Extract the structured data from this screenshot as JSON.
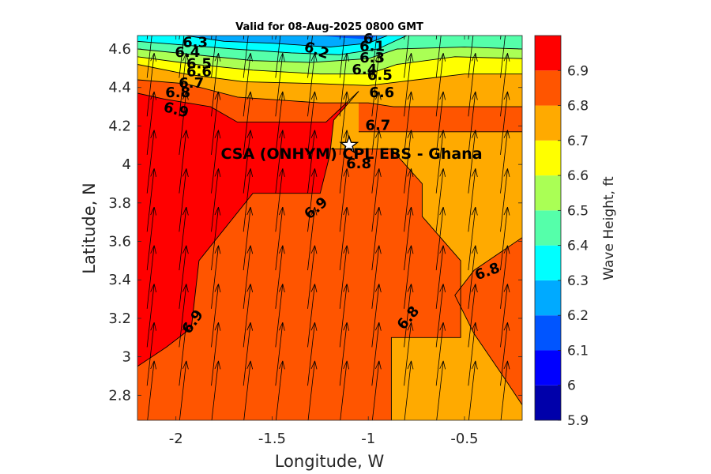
{
  "chart_data": {
    "type": "heatmap",
    "title": "Valid for 08-Aug-2025 0800 GMT",
    "xlabel": "Longitude, W",
    "ylabel": "Latitude, N",
    "xlim": [
      -2.2,
      -0.2
    ],
    "ylim": [
      2.67,
      4.67
    ],
    "x_ticks": [
      -2,
      -1.5,
      -1,
      -0.5
    ],
    "x_tick_labels": [
      "-2",
      "-1.5",
      "-1",
      "-0.5"
    ],
    "y_ticks": [
      2.8,
      3,
      3.2,
      3.4,
      3.6,
      3.8,
      4,
      4.2,
      4.4,
      4.6
    ],
    "y_tick_labels": [
      "2.8",
      "3",
      "3.2",
      "3.4",
      "3.6",
      "3.8",
      "4",
      "4.2",
      "4.4",
      "4.6"
    ],
    "colorbar": {
      "label": "Wave Height, ft",
      "ticks": [
        5.9,
        6,
        6.1,
        6.2,
        6.3,
        6.4,
        6.5,
        6.6,
        6.7,
        6.8,
        6.9
      ],
      "tick_labels": [
        "5.9",
        "6",
        "6.1",
        "6.2",
        "6.3",
        "6.4",
        "6.5",
        "6.6",
        "6.7",
        "6.8",
        "6.9"
      ],
      "range": [
        5.9,
        7.0
      ],
      "bands": [
        {
          "lo": 5.9,
          "hi": 6.0,
          "color": "#0000aa"
        },
        {
          "lo": 6.0,
          "hi": 6.1,
          "color": "#0000ff"
        },
        {
          "lo": 6.1,
          "hi": 6.2,
          "color": "#0055ff"
        },
        {
          "lo": 6.2,
          "hi": 6.3,
          "color": "#00aaff"
        },
        {
          "lo": 6.3,
          "hi": 6.4,
          "color": "#00ffff"
        },
        {
          "lo": 6.4,
          "hi": 6.5,
          "color": "#55ffaa"
        },
        {
          "lo": 6.5,
          "hi": 6.6,
          "color": "#aaff55"
        },
        {
          "lo": 6.6,
          "hi": 6.7,
          "color": "#ffff00"
        },
        {
          "lo": 6.7,
          "hi": 6.8,
          "color": "#ffaa00"
        },
        {
          "lo": 6.8,
          "hi": 6.9,
          "color": "#ff5500"
        },
        {
          "lo": 6.9,
          "hi": 7.0,
          "color": "#ff0000"
        }
      ]
    },
    "regions": [
      {
        "level": 6.8,
        "points": [
          [
            -2.2,
            2.67
          ],
          [
            -0.2,
            2.67
          ],
          [
            -0.2,
            4.67
          ],
          [
            -2.2,
            4.67
          ]
        ]
      },
      {
        "level": 6.7,
        "points": [
          [
            -0.88,
            2.67
          ],
          [
            -0.2,
            2.67
          ],
          [
            -0.2,
            4.67
          ],
          [
            -1.2,
            4.67
          ],
          [
            -1.2,
            4.08
          ],
          [
            -0.88,
            4.08
          ],
          [
            -0.72,
            3.9
          ],
          [
            -0.72,
            3.73
          ],
          [
            -0.52,
            3.5
          ],
          [
            -0.52,
            3.1
          ],
          [
            -0.88,
            3.1
          ]
        ]
      },
      {
        "level": 6.8,
        "points": [
          [
            -0.2,
            2.75
          ],
          [
            -0.2,
            3.62
          ],
          [
            -0.45,
            3.45
          ],
          [
            -0.55,
            3.32
          ],
          [
            -0.45,
            3.12
          ],
          [
            -0.3,
            2.9
          ]
        ]
      },
      {
        "level": 6.9,
        "points": [
          [
            -2.2,
            2.95
          ],
          [
            -2.05,
            3.05
          ],
          [
            -1.92,
            3.15
          ],
          [
            -1.88,
            3.5
          ],
          [
            -1.6,
            3.85
          ],
          [
            -1.25,
            3.85
          ],
          [
            -1.2,
            4.05
          ],
          [
            -1.18,
            4.23
          ],
          [
            -1.05,
            4.38
          ],
          [
            -2.2,
            4.42
          ]
        ]
      },
      {
        "level": 6.8,
        "points": [
          [
            -1.05,
            4.17
          ],
          [
            -0.2,
            4.17
          ],
          [
            -0.2,
            4.67
          ],
          [
            -1.05,
            4.67
          ]
        ]
      },
      {
        "level": 6.8,
        "points": [
          [
            -2.2,
            4.37
          ],
          [
            -2.06,
            4.34
          ],
          [
            -1.82,
            4.3
          ],
          [
            -1.68,
            4.22
          ],
          [
            -1.22,
            4.22
          ],
          [
            -1.05,
            4.38
          ],
          [
            -1.05,
            4.67
          ],
          [
            -2.2,
            4.67
          ]
        ]
      },
      {
        "level": 6.7,
        "points": [
          [
            -2.2,
            4.44
          ],
          [
            -1.95,
            4.42
          ],
          [
            -1.68,
            4.35
          ],
          [
            -1.25,
            4.32
          ],
          [
            -1.0,
            4.32
          ],
          [
            -0.87,
            4.3
          ],
          [
            -0.2,
            4.3
          ],
          [
            -0.2,
            4.67
          ],
          [
            -2.2,
            4.67
          ]
        ]
      },
      {
        "level": 6.6,
        "points": [
          [
            -2.2,
            4.52
          ],
          [
            -1.95,
            4.47
          ],
          [
            -1.65,
            4.43
          ],
          [
            -1.25,
            4.42
          ],
          [
            -1.0,
            4.41
          ],
          [
            -0.75,
            4.44
          ],
          [
            -0.5,
            4.47
          ],
          [
            -0.2,
            4.47
          ],
          [
            -0.2,
            4.67
          ],
          [
            -2.2,
            4.67
          ]
        ]
      },
      {
        "level": 6.5,
        "points": [
          [
            -2.2,
            4.56
          ],
          [
            -1.9,
            4.52
          ],
          [
            -1.6,
            4.49
          ],
          [
            -1.25,
            4.47
          ],
          [
            -1.0,
            4.47
          ],
          [
            -0.85,
            4.52
          ],
          [
            -0.55,
            4.56
          ],
          [
            -0.2,
            4.55
          ],
          [
            -0.2,
            4.67
          ],
          [
            -2.2,
            4.67
          ]
        ]
      },
      {
        "level": 6.4,
        "points": [
          [
            -2.2,
            4.6
          ],
          [
            -1.9,
            4.57
          ],
          [
            -1.6,
            4.54
          ],
          [
            -1.3,
            4.53
          ],
          [
            -1.0,
            4.55
          ],
          [
            -0.85,
            4.6
          ],
          [
            -0.5,
            4.61
          ],
          [
            -0.2,
            4.6
          ],
          [
            -0.2,
            4.67
          ],
          [
            -2.2,
            4.67
          ]
        ]
      },
      {
        "level": 6.3,
        "points": [
          [
            -2.2,
            4.64
          ],
          [
            -1.95,
            4.62
          ],
          [
            -1.7,
            4.6
          ],
          [
            -1.4,
            4.58
          ],
          [
            -1.15,
            4.57
          ],
          [
            -0.95,
            4.6
          ],
          [
            -0.8,
            4.67
          ],
          [
            -2.2,
            4.67
          ]
        ]
      },
      {
        "level": 6.2,
        "points": [
          [
            -1.95,
            4.67
          ],
          [
            -1.75,
            4.64
          ],
          [
            -1.5,
            4.63
          ],
          [
            -1.2,
            4.61
          ],
          [
            -1.0,
            4.63
          ],
          [
            -0.9,
            4.67
          ]
        ]
      },
      {
        "level": 6.1,
        "points": [
          [
            -1.25,
            4.67
          ],
          [
            -1.15,
            4.66
          ],
          [
            -1.0,
            4.65
          ],
          [
            -0.95,
            4.67
          ]
        ]
      }
    ],
    "contour_lines": [
      [
        [
          -2.2,
          2.95
        ],
        [
          -2.05,
          3.05
        ],
        [
          -1.92,
          3.15
        ],
        [
          -1.88,
          3.5
        ],
        [
          -1.6,
          3.85
        ],
        [
          -1.25,
          3.85
        ],
        [
          -1.2,
          4.05
        ],
        [
          -1.18,
          4.23
        ],
        [
          -1.05,
          4.38
        ]
      ],
      [
        [
          -2.2,
          4.37
        ],
        [
          -2.06,
          4.34
        ],
        [
          -1.82,
          4.3
        ],
        [
          -1.68,
          4.22
        ],
        [
          -1.22,
          4.22
        ],
        [
          -1.05,
          4.38
        ]
      ],
      [
        [
          -1.05,
          4.17
        ],
        [
          -0.2,
          4.17
        ]
      ],
      [
        [
          -2.2,
          4.44
        ],
        [
          -1.95,
          4.42
        ],
        [
          -1.68,
          4.35
        ],
        [
          -1.25,
          4.32
        ],
        [
          -1.0,
          4.32
        ],
        [
          -0.87,
          4.3
        ],
        [
          -0.2,
          4.3
        ]
      ],
      [
        [
          -2.2,
          4.52
        ],
        [
          -1.95,
          4.47
        ],
        [
          -1.65,
          4.43
        ],
        [
          -1.25,
          4.42
        ],
        [
          -1.0,
          4.41
        ],
        [
          -0.75,
          4.44
        ],
        [
          -0.5,
          4.47
        ],
        [
          -0.2,
          4.47
        ]
      ],
      [
        [
          -2.2,
          4.56
        ],
        [
          -1.9,
          4.52
        ],
        [
          -1.6,
          4.49
        ],
        [
          -1.25,
          4.47
        ],
        [
          -1.0,
          4.47
        ],
        [
          -0.85,
          4.52
        ],
        [
          -0.55,
          4.56
        ],
        [
          -0.2,
          4.55
        ]
      ],
      [
        [
          -2.2,
          4.6
        ],
        [
          -1.9,
          4.57
        ],
        [
          -1.6,
          4.54
        ],
        [
          -1.3,
          4.53
        ],
        [
          -1.0,
          4.55
        ],
        [
          -0.85,
          4.6
        ],
        [
          -0.5,
          4.61
        ],
        [
          -0.2,
          4.6
        ]
      ],
      [
        [
          -2.2,
          4.64
        ],
        [
          -1.95,
          4.62
        ],
        [
          -1.7,
          4.6
        ],
        [
          -1.4,
          4.58
        ],
        [
          -1.15,
          4.57
        ],
        [
          -0.95,
          4.6
        ],
        [
          -0.8,
          4.67
        ]
      ],
      [
        [
          -1.95,
          4.67
        ],
        [
          -1.75,
          4.64
        ],
        [
          -1.5,
          4.63
        ],
        [
          -1.2,
          4.61
        ],
        [
          -1.0,
          4.63
        ],
        [
          -0.9,
          4.67
        ]
      ],
      [
        [
          -0.88,
          2.67
        ],
        [
          -0.88,
          3.1
        ],
        [
          -0.52,
          3.1
        ],
        [
          -0.52,
          3.5
        ],
        [
          -0.72,
          3.73
        ],
        [
          -0.72,
          3.9
        ],
        [
          -0.88,
          4.08
        ],
        [
          -1.2,
          4.08
        ]
      ],
      [
        [
          -0.2,
          2.75
        ],
        [
          -0.3,
          2.9
        ],
        [
          -0.45,
          3.12
        ],
        [
          -0.55,
          3.32
        ],
        [
          -0.45,
          3.45
        ],
        [
          -0.2,
          3.62
        ]
      ]
    ],
    "contour_labels": [
      {
        "text": "6.3",
        "x": -1.9,
        "y": 4.63,
        "angle": 0
      },
      {
        "text": "6.4",
        "x": -1.94,
        "y": 4.58,
        "angle": 0
      },
      {
        "text": "6.5",
        "x": -1.88,
        "y": 4.52,
        "angle": 0
      },
      {
        "text": "6.6",
        "x": -1.88,
        "y": 4.48,
        "angle": 0
      },
      {
        "text": "6.7",
        "x": -1.92,
        "y": 4.42,
        "angle": 0
      },
      {
        "text": "6.8",
        "x": -1.99,
        "y": 4.37,
        "angle": 0
      },
      {
        "text": "6.9",
        "x": -2.0,
        "y": 4.28,
        "angle": 15
      },
      {
        "text": "6.2",
        "x": -1.27,
        "y": 4.59,
        "angle": 20
      },
      {
        "text": "6.1",
        "x": -0.98,
        "y": 4.61,
        "angle": 0
      },
      {
        "text": "6",
        "x": -1.0,
        "y": 4.65,
        "angle": 0
      },
      {
        "text": "6.3",
        "x": -0.98,
        "y": 4.55,
        "angle": 0
      },
      {
        "text": "6.4",
        "x": -1.02,
        "y": 4.49,
        "angle": 0
      },
      {
        "text": "6.5",
        "x": -0.94,
        "y": 4.46,
        "angle": 0
      },
      {
        "text": "6.6",
        "x": -0.93,
        "y": 4.37,
        "angle": 0
      },
      {
        "text": "6.7",
        "x": -0.95,
        "y": 4.2,
        "angle": 0
      },
      {
        "text": "6.8",
        "x": -1.05,
        "y": 4.0,
        "angle": 0
      },
      {
        "text": "6.9",
        "x": -1.27,
        "y": 3.77,
        "angle": -40
      },
      {
        "text": "6.9",
        "x": -1.91,
        "y": 3.18,
        "angle": -55
      },
      {
        "text": "6.8",
        "x": -0.79,
        "y": 3.2,
        "angle": -50
      },
      {
        "text": "6.8",
        "x": -0.38,
        "y": 3.44,
        "angle": -20
      }
    ],
    "site": {
      "name": "CSA (ONHYM) CPL EBS  - Ghana",
      "x": -1.1,
      "y": 4.1
    },
    "vectors": {
      "color": "#000000",
      "x_step": 0.167,
      "y_step": 0.2,
      "direction": "north-northeast"
    }
  }
}
